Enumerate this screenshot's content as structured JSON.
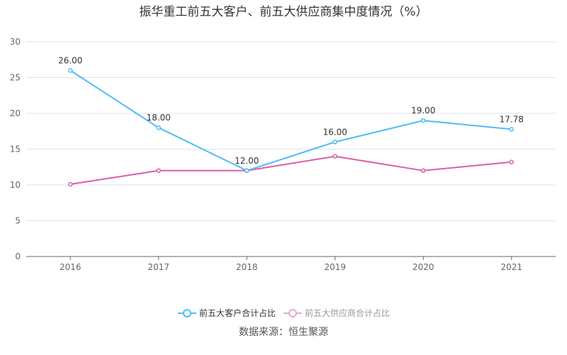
{
  "chart_data": {
    "type": "line",
    "title": "振华重工前五大客户、前五大供应商集中度情况（%）",
    "categories": [
      "2016",
      "2017",
      "2018",
      "2019",
      "2020",
      "2021"
    ],
    "ylim": [
      0,
      30
    ],
    "yticks": [
      "0",
      "5",
      "10",
      "15",
      "20",
      "25",
      "30"
    ],
    "grid": true,
    "legend_position": "bottom",
    "series": [
      {
        "name": "前五大客户合计占比",
        "color": "#4fbdf6",
        "values": [
          26.0,
          18.0,
          12.0,
          16.0,
          19.0,
          17.78
        ],
        "labels": [
          "26.00",
          "18.00",
          "12.00",
          "16.00",
          "19.00",
          "17.78"
        ]
      },
      {
        "name": "前五大供应商合计占比",
        "color": "#d95fa8",
        "legend_color": "#eaa9cf",
        "values": [
          10.1,
          12.0,
          12.0,
          14.0,
          12.0,
          13.2
        ]
      }
    ]
  },
  "source": "数据来源：恒生聚源"
}
